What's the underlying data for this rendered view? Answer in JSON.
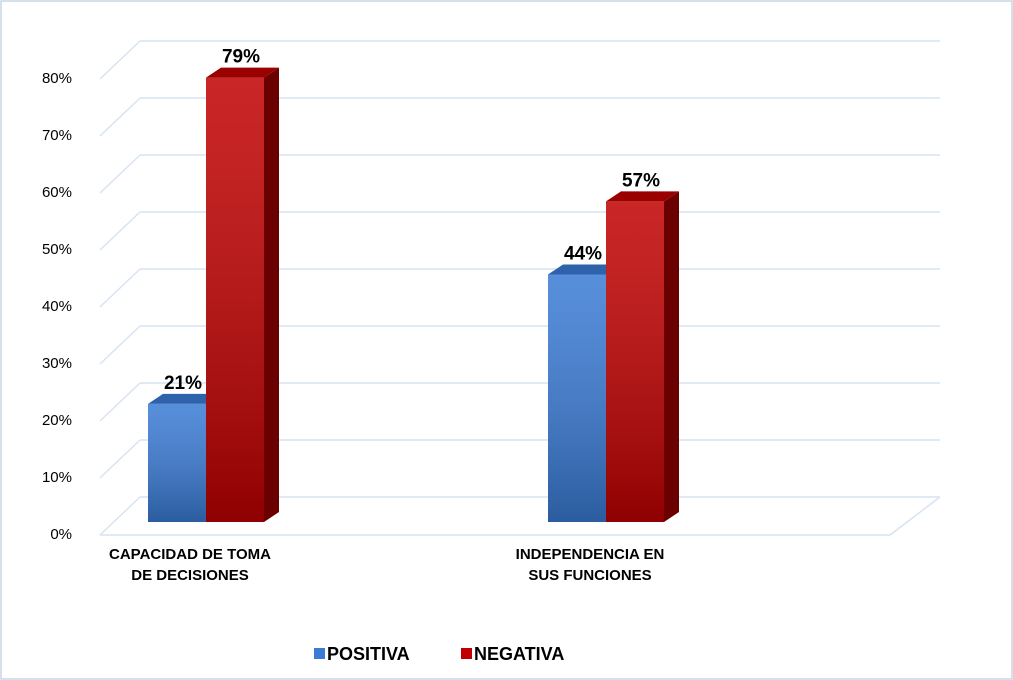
{
  "chart_data": {
    "type": "bar3d",
    "categories": [
      "CAPACIDAD DE TOMA DE DECISIONES",
      "INDEPENDENCIA EN SUS FUNCIONES"
    ],
    "series": [
      {
        "name": "POSITIVA",
        "color": "#3a7bd5",
        "values": [
          21,
          44
        ],
        "value_labels": [
          "21%",
          "44%"
        ]
      },
      {
        "name": "NEGATIVA",
        "color": "#c00000",
        "values": [
          79,
          57
        ],
        "value_labels": [
          "79%",
          "57%"
        ]
      }
    ],
    "ylim": [
      0,
      80
    ],
    "yticks": [
      {
        "value": 0,
        "label": "0%"
      },
      {
        "value": 10,
        "label": "10%"
      },
      {
        "value": 20,
        "label": "20%"
      },
      {
        "value": 30,
        "label": "30%"
      },
      {
        "value": 40,
        "label": "40%"
      },
      {
        "value": 50,
        "label": "50%"
      },
      {
        "value": 60,
        "label": "60%"
      },
      {
        "value": 70,
        "label": "70%"
      },
      {
        "value": 80,
        "label": "80%"
      }
    ],
    "grid": true,
    "legend": "bottom"
  }
}
